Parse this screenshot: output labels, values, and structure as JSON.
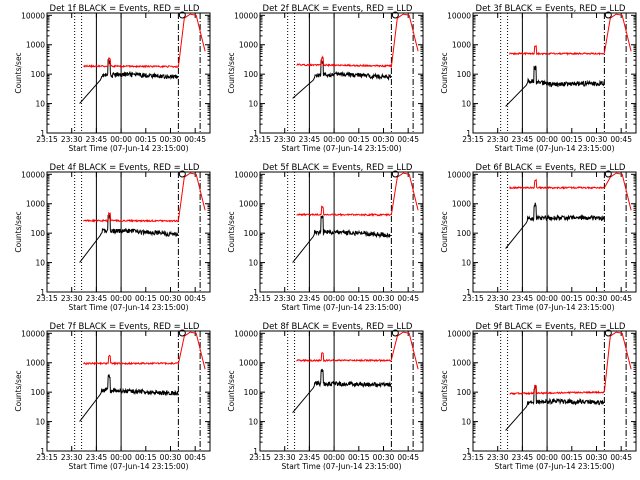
{
  "xlabel": "Start Time (07-Jun-14 23:15:00)",
  "ylabel": "Counts/sec",
  "x_tick_labels": [
    "23:15",
    "23:30",
    "23:45",
    "00:00",
    "00:15",
    "00:30",
    "00:45"
  ],
  "y_tick_labels": [
    "1",
    "10",
    "100",
    "1000",
    "10000"
  ],
  "colors": {
    "events": "#000000",
    "lld": "#ff0000"
  },
  "chart_data": [
    {
      "type": "line",
      "title": "Det 1f BLACK = Events, RED = LLD",
      "xlim": [
        "23:15",
        "00:55"
      ],
      "ylim": [
        1,
        12000
      ],
      "yscale": "log",
      "events": [
        [
          23.58,
          10
        ],
        [
          23.8,
          90
        ],
        [
          24.05,
          100
        ],
        [
          24.58,
          80
        ]
      ],
      "lld": [
        [
          23.62,
          190
        ],
        [
          24.1,
          200
        ],
        [
          24.58,
          180
        ],
        [
          24.77,
          10000
        ]
      ]
    },
    {
      "type": "line",
      "title": "Det 2f BLACK = Events, RED = LLD",
      "xlim": [
        "23:15",
        "00:55"
      ],
      "ylim": [
        1,
        12000
      ],
      "yscale": "log",
      "events": [
        [
          23.58,
          15
        ],
        [
          23.8,
          90
        ],
        [
          24.05,
          100
        ],
        [
          24.58,
          80
        ]
      ],
      "lld": [
        [
          23.62,
          210
        ],
        [
          24.1,
          210
        ],
        [
          24.58,
          190
        ],
        [
          24.77,
          10000
        ]
      ]
    },
    {
      "type": "line",
      "title": "Det 3f BLACK = Events, RED = LLD",
      "xlim": [
        "23:15",
        "00:55"
      ],
      "ylim": [
        1,
        12000
      ],
      "yscale": "log",
      "events": [
        [
          23.58,
          8
        ],
        [
          23.8,
          60
        ],
        [
          24.05,
          45
        ],
        [
          24.58,
          50
        ]
      ],
      "lld": [
        [
          23.62,
          500
        ],
        [
          24.1,
          500
        ],
        [
          24.58,
          500
        ],
        [
          24.77,
          10000
        ]
      ]
    },
    {
      "type": "line",
      "title": "Det 4f BLACK = Events, RED = LLD",
      "xlim": [
        "23:15",
        "00:55"
      ],
      "ylim": [
        1,
        12000
      ],
      "yscale": "log",
      "events": [
        [
          23.58,
          10
        ],
        [
          23.8,
          120
        ],
        [
          24.05,
          120
        ],
        [
          24.58,
          90
        ]
      ],
      "lld": [
        [
          23.62,
          270
        ],
        [
          24.1,
          280
        ],
        [
          24.58,
          260
        ],
        [
          24.77,
          10000
        ]
      ]
    },
    {
      "type": "line",
      "title": "Det 5f BLACK = Events, RED = LLD",
      "xlim": [
        "23:15",
        "00:55"
      ],
      "ylim": [
        1,
        12000
      ],
      "yscale": "log",
      "events": [
        [
          23.58,
          10
        ],
        [
          23.8,
          110
        ],
        [
          24.05,
          110
        ],
        [
          24.58,
          85
        ]
      ],
      "lld": [
        [
          23.62,
          430
        ],
        [
          24.1,
          450
        ],
        [
          24.58,
          420
        ],
        [
          24.77,
          10000
        ]
      ]
    },
    {
      "type": "line",
      "title": "Det 6f BLACK = Events, RED = LLD",
      "xlim": [
        "23:15",
        "00:55"
      ],
      "ylim": [
        1,
        12000
      ],
      "yscale": "log",
      "events": [
        [
          23.58,
          30
        ],
        [
          23.8,
          320
        ],
        [
          24.05,
          340
        ],
        [
          24.58,
          330
        ]
      ],
      "lld": [
        [
          23.62,
          3500
        ],
        [
          24.1,
          3500
        ],
        [
          24.58,
          3500
        ],
        [
          24.77,
          10000
        ]
      ]
    },
    {
      "type": "line",
      "title": "Det 7f BLACK = Events, RED = LLD",
      "xlim": [
        "23:15",
        "00:55"
      ],
      "ylim": [
        1,
        12000
      ],
      "yscale": "log",
      "events": [
        [
          23.58,
          10
        ],
        [
          23.8,
          120
        ],
        [
          24.05,
          110
        ],
        [
          24.58,
          90
        ]
      ],
      "lld": [
        [
          23.62,
          950
        ],
        [
          24.1,
          1000
        ],
        [
          24.58,
          950
        ],
        [
          24.77,
          10000
        ]
      ]
    },
    {
      "type": "line",
      "title": "Det 8f BLACK = Events, RED = LLD",
      "xlim": [
        "23:15",
        "00:55"
      ],
      "ylim": [
        1,
        12000
      ],
      "yscale": "log",
      "events": [
        [
          23.58,
          20
        ],
        [
          23.8,
          200
        ],
        [
          24.05,
          190
        ],
        [
          24.58,
          180
        ]
      ],
      "lld": [
        [
          23.62,
          1200
        ],
        [
          24.1,
          1250
        ],
        [
          24.58,
          1200
        ],
        [
          24.77,
          10000
        ]
      ]
    },
    {
      "type": "line",
      "title": "Det 9f BLACK = Events, RED = LLD",
      "xlim": [
        "23:15",
        "00:55"
      ],
      "ylim": [
        1,
        12000
      ],
      "yscale": "log",
      "events": [
        [
          23.58,
          5
        ],
        [
          23.8,
          45
        ],
        [
          24.05,
          50
        ],
        [
          24.58,
          45
        ]
      ],
      "lld": [
        [
          23.62,
          90
        ],
        [
          24.1,
          85
        ],
        [
          24.58,
          100
        ],
        [
          24.77,
          10000
        ]
      ]
    }
  ]
}
